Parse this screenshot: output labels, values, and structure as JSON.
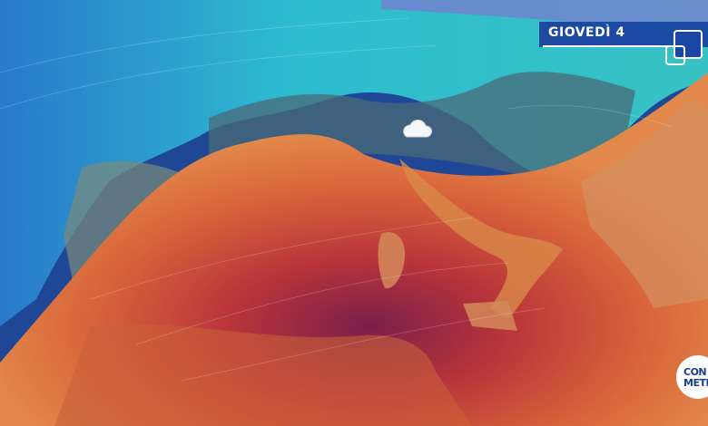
{
  "header": {
    "day_label": "GIOVEDÌ 4"
  },
  "logo": {
    "line1": "CON",
    "line2": "METEO"
  },
  "map": {
    "weather_icons": [
      {
        "type": "cloud-icon",
        "region": "Northern Italy"
      }
    ],
    "colors": {
      "cold_air": "#2ad0d8",
      "sea_deep": "#1e3f8f",
      "warm_air": "#e0783a",
      "hot_core": "#8a2040"
    }
  }
}
